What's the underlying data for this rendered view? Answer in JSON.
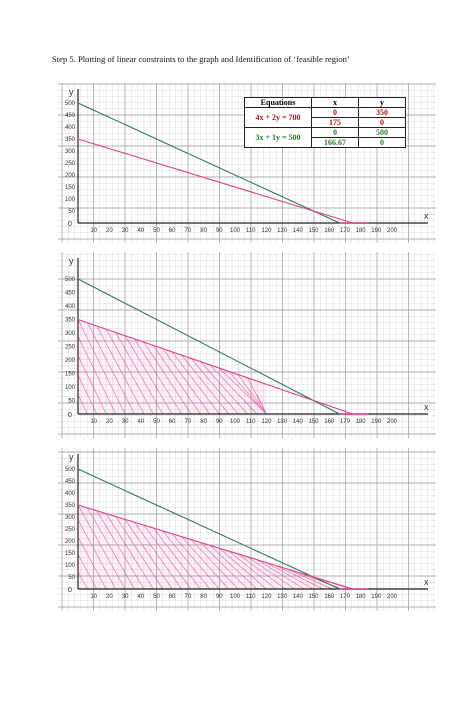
{
  "caption": "Step 5. Plotting of linear constraints to the graph and Identification of ‘feasible region’",
  "table": {
    "headers": [
      "Equations",
      "x",
      "y"
    ],
    "rows": [
      {
        "equation": "4x + 2y = 700",
        "x": [
          "0",
          "175"
        ],
        "y": [
          "350",
          "0"
        ],
        "color": "#b01818"
      },
      {
        "equation": "3x + 1y = 500",
        "x": [
          "0",
          "166.67"
        ],
        "y": [
          "500",
          "0"
        ],
        "color": "#2e7a2e"
      }
    ]
  },
  "panels": [
    {
      "id": "plot-constraints",
      "shading": "none"
    },
    {
      "id": "region-partial",
      "shading": "partial"
    },
    {
      "id": "feasible-region",
      "shading": "full"
    }
  ],
  "axis": {
    "x_symbol": "x",
    "y_symbol": "y",
    "origin": "0",
    "x_ticks": [
      "10",
      "20",
      "30",
      "40",
      "50",
      "60",
      "70",
      "80",
      "90",
      "100",
      "110",
      "120",
      "130",
      "140",
      "150",
      "160",
      "170",
      "180",
      "190",
      "200"
    ],
    "y_ticks": [
      "50",
      "100",
      "150",
      "200",
      "250",
      "300",
      "350",
      "400",
      "450",
      "500"
    ]
  },
  "colors": {
    "constraint_1": "#e0408c",
    "constraint_2": "#2f7a5a",
    "grid": "#9c9c9c",
    "hatch": "#e0408c"
  }
}
